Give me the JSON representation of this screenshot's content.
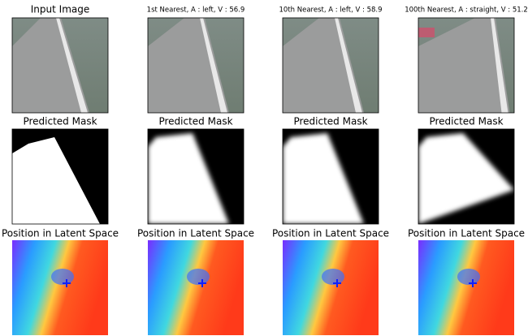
{
  "rows": [
    {
      "titles": [
        "Input Image",
        "1st Nearest, A : left, V : 56.9",
        "10th Nearest, A : left, V : 58.9",
        "100th Nearest, A : straight, V : 51.2"
      ]
    },
    {
      "titles": [
        "Predicted Mask",
        "Predicted Mask",
        "Predicted Mask",
        "Predicted Mask"
      ]
    },
    {
      "titles": [
        "Position in Latent Space",
        "Position in Latent Space",
        "Position in Latent Space",
        "Position in Latent Space"
      ]
    }
  ]
}
